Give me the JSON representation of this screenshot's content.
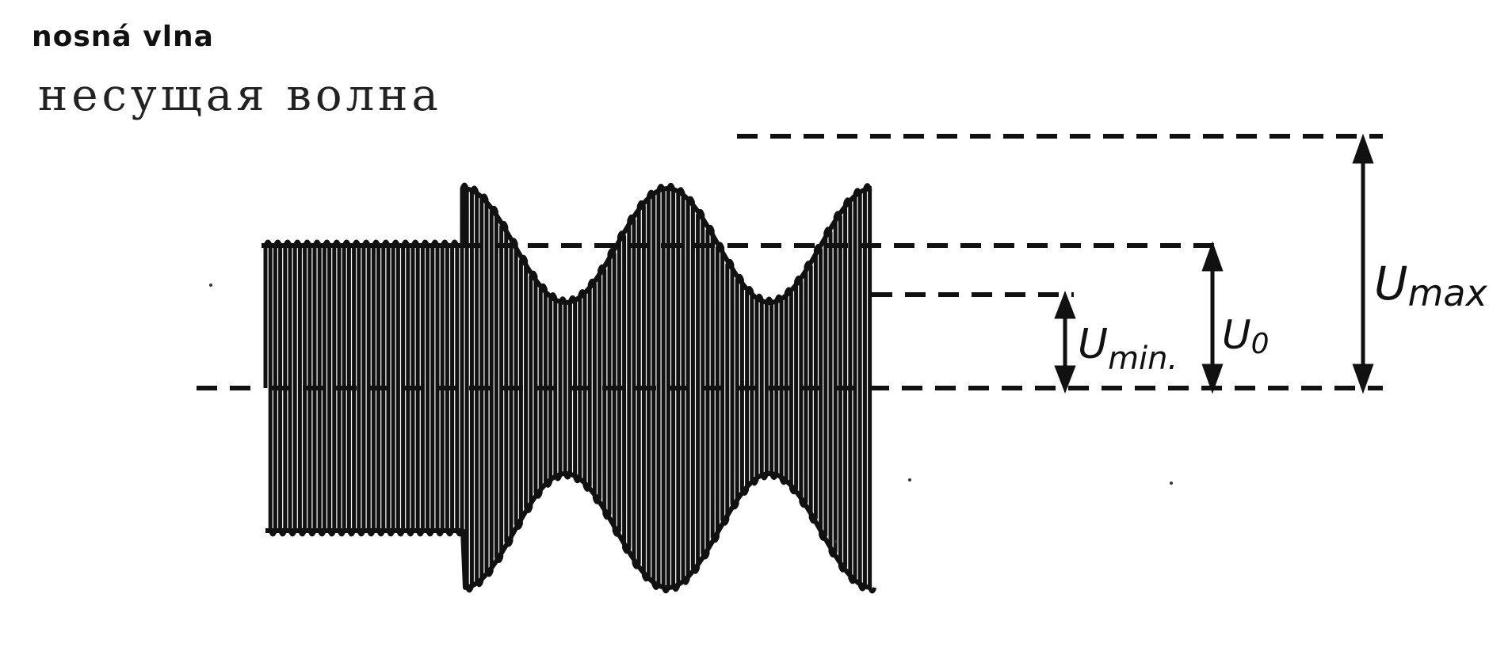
{
  "labels": {
    "carrier_wave_cz": "nosná vlna",
    "carrier_wave_ru": "несущая волна",
    "u_max": "U",
    "u_max_sub": "max",
    "u_0": "U",
    "u_0_sub": "0",
    "u_min": "U",
    "u_min_sub": "min."
  },
  "colors": {
    "ink": "#111111",
    "paper": "#ffffff"
  },
  "wave": {
    "unmodulated_periods": 10,
    "modulated_periods": 2,
    "modulation_depth": 0.4
  }
}
